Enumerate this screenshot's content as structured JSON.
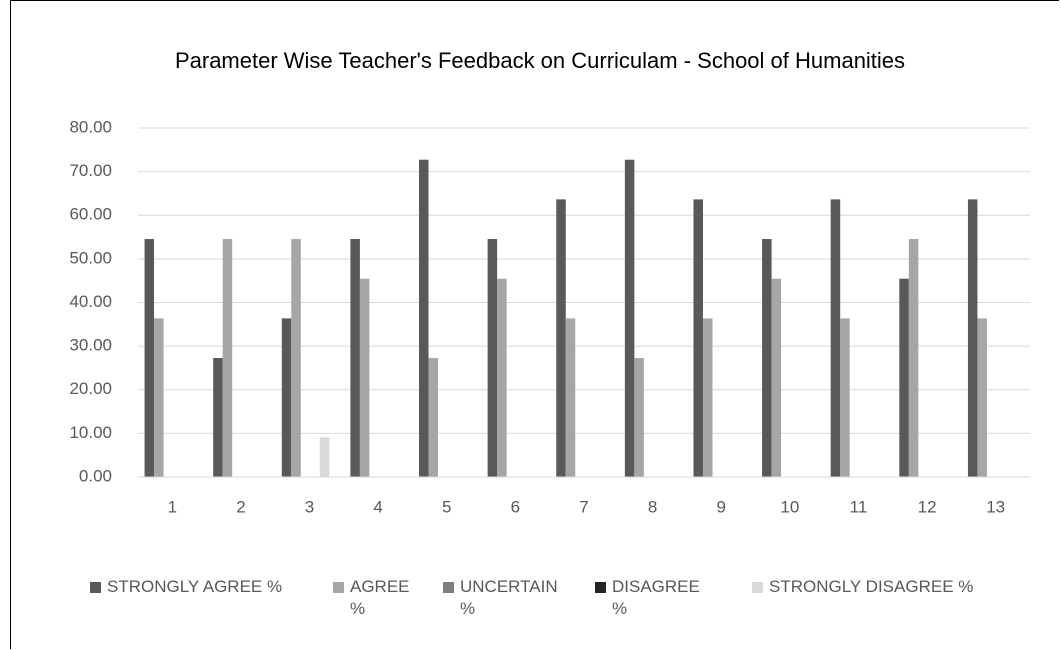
{
  "chart_data": {
    "type": "bar",
    "title": "Parameter Wise Teacher's Feedback on Curriculam - School of Humanities",
    "categories": [
      "1",
      "2",
      "3",
      "4",
      "5",
      "6",
      "7",
      "8",
      "9",
      "10",
      "11",
      "12",
      "13"
    ],
    "series": [
      {
        "name": "STRONGLY AGREE %",
        "color": "#595959",
        "values": [
          54.55,
          27.27,
          36.36,
          54.55,
          72.73,
          54.55,
          63.64,
          72.73,
          63.64,
          54.55,
          63.64,
          45.45,
          63.64
        ]
      },
      {
        "name": "AGREE %",
        "color": "#a6a6a6",
        "values": [
          36.36,
          54.55,
          54.55,
          45.45,
          27.27,
          45.45,
          36.36,
          27.27,
          36.36,
          45.45,
          36.36,
          54.55,
          36.36
        ]
      },
      {
        "name": "UNCERTAIN %",
        "color": "#7f7f7f",
        "values": [
          0,
          0,
          0,
          0,
          0,
          0,
          0,
          0,
          0,
          0,
          0,
          0,
          0
        ]
      },
      {
        "name": "DISAGREE %",
        "color": "#262626",
        "values": [
          0,
          0,
          0,
          0,
          0,
          0,
          0,
          0,
          0,
          0,
          0,
          0,
          0
        ]
      },
      {
        "name": "STRONGLY DISAGREE %",
        "color": "#d9d9d9",
        "values": [
          0,
          0,
          9.09,
          0,
          0,
          0,
          0,
          0,
          0,
          0,
          0,
          0,
          0
        ]
      }
    ],
    "ylim": [
      0,
      80
    ],
    "yticks": [
      {
        "value": 0,
        "label": "0.00"
      },
      {
        "value": 10,
        "label": "10.00"
      },
      {
        "value": 20,
        "label": "20.00"
      },
      {
        "value": 30,
        "label": "30.00"
      },
      {
        "value": 40,
        "label": "40.00"
      },
      {
        "value": 50,
        "label": "50.00"
      },
      {
        "value": 60,
        "label": "60.00"
      },
      {
        "value": 70,
        "label": "70.00"
      },
      {
        "value": 80,
        "label": "80.00"
      }
    ],
    "grid": true,
    "legend": "bottom"
  }
}
